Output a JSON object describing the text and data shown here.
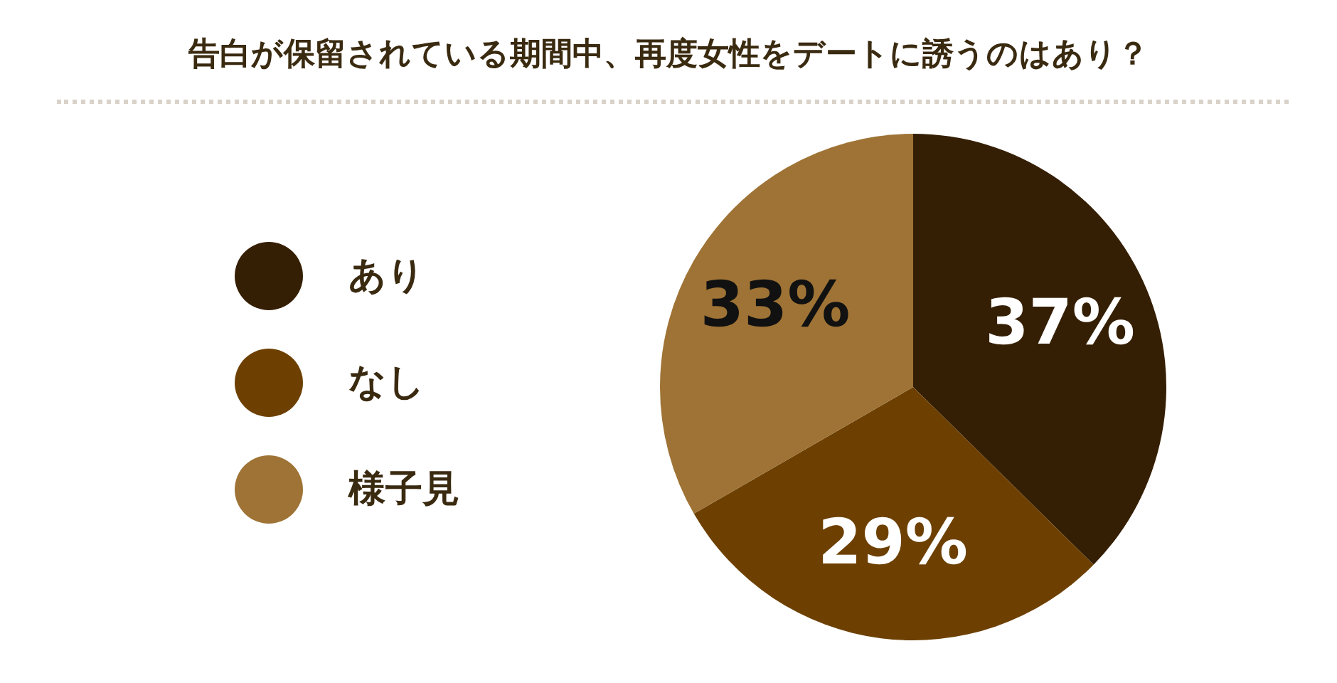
{
  "chart_data": {
    "type": "pie",
    "title": "告白が保留されている期間中、再度女性をデートに誘うのはあり？",
    "categories": [
      "あり",
      "なし",
      "様子見"
    ],
    "values": [
      37,
      29,
      33
    ],
    "colors": [
      "#351f04",
      "#6d4002",
      "#9e7335"
    ],
    "value_labels": [
      "37%",
      "29%",
      "33%"
    ],
    "legend": "left"
  }
}
